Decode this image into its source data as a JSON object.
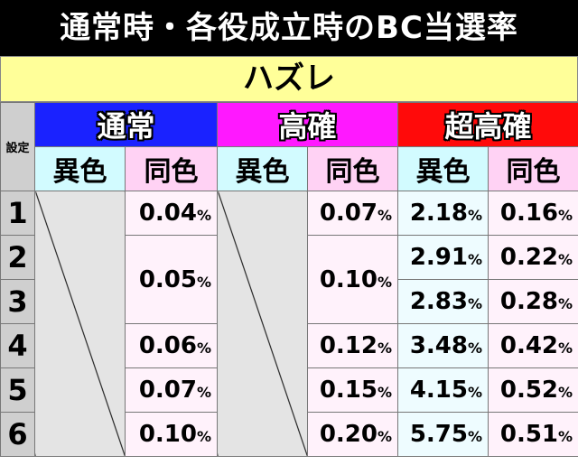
{
  "title": "通常時・各役成立時のBC当選率",
  "section": "ハズレ",
  "table": {
    "setting_label": "設定",
    "groups": [
      {
        "name": "通常",
        "sub": [
          "異色",
          "同色"
        ]
      },
      {
        "name": "高確",
        "sub": [
          "異色",
          "同色"
        ]
      },
      {
        "name": "超高確",
        "sub": [
          "異色",
          "同色"
        ]
      }
    ],
    "settings": [
      "1",
      "2",
      "3",
      "4",
      "5",
      "6"
    ],
    "normal_same": [
      {
        "value": "0.04",
        "unit": "%"
      },
      {
        "value": "0.05",
        "unit": "%"
      },
      {
        "value": "0.06",
        "unit": "%"
      },
      {
        "value": "0.07",
        "unit": "%"
      },
      {
        "value": "0.10",
        "unit": "%"
      }
    ],
    "high_same": [
      {
        "value": "0.07",
        "unit": "%"
      },
      {
        "value": "0.10",
        "unit": "%"
      },
      {
        "value": "0.12",
        "unit": "%"
      },
      {
        "value": "0.15",
        "unit": "%"
      },
      {
        "value": "0.20",
        "unit": "%"
      }
    ],
    "super_diff": [
      {
        "value": "2.18",
        "unit": "%"
      },
      {
        "value": "2.91",
        "unit": "%"
      },
      {
        "value": "2.83",
        "unit": "%"
      },
      {
        "value": "3.48",
        "unit": "%"
      },
      {
        "value": "4.15",
        "unit": "%"
      },
      {
        "value": "5.75",
        "unit": "%"
      }
    ],
    "super_same": [
      {
        "value": "0.16",
        "unit": "%"
      },
      {
        "value": "0.22",
        "unit": "%"
      },
      {
        "value": "0.28",
        "unit": "%"
      },
      {
        "value": "0.42",
        "unit": "%"
      },
      {
        "value": "0.52",
        "unit": "%"
      },
      {
        "value": "0.51",
        "unit": "%"
      }
    ]
  }
}
